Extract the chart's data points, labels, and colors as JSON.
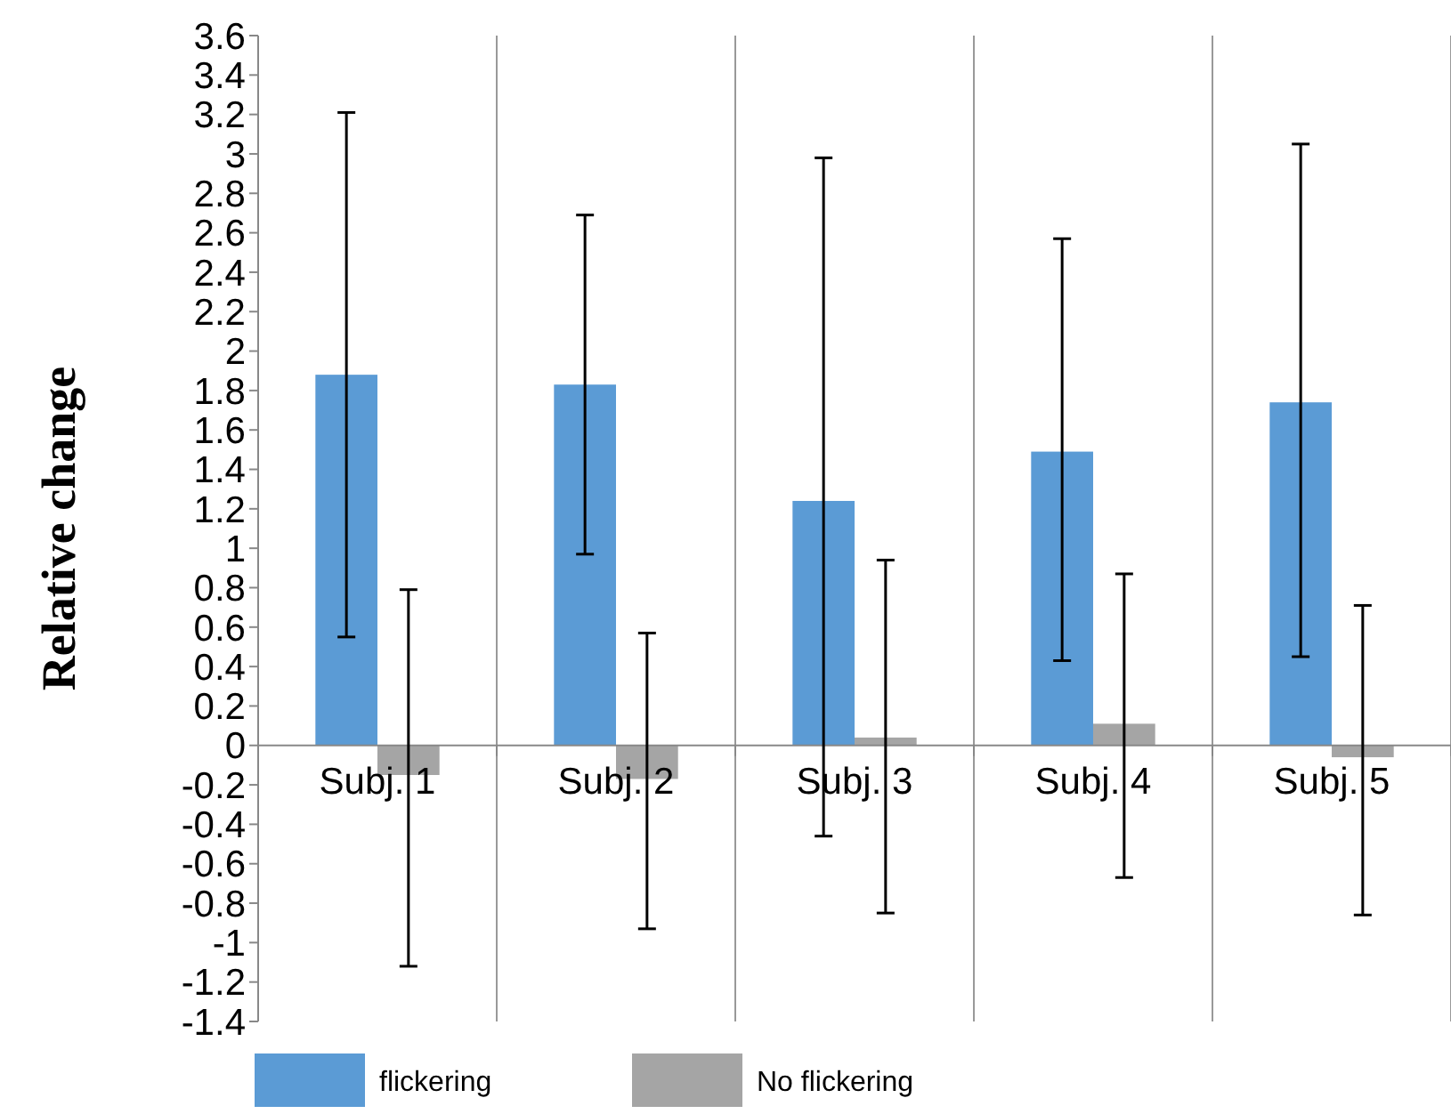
{
  "chart_data": {
    "type": "bar",
    "ylabel": "Relative change",
    "categories": [
      "Subj. 1",
      "Subj. 2",
      "Subj. 3",
      "Subj. 4",
      "Subj. 5"
    ],
    "series": [
      {
        "name": "flickering",
        "color": "#5b9bd5",
        "values": [
          1.88,
          1.83,
          1.24,
          1.49,
          1.74
        ],
        "errors": [
          [
            0.55,
            3.21
          ],
          [
            0.97,
            2.69
          ],
          [
            -0.46,
            2.98
          ],
          [
            0.43,
            2.57
          ],
          [
            0.45,
            3.05
          ]
        ]
      },
      {
        "name": "No flickering",
        "color": "#a5a5a5",
        "values": [
          -0.15,
          -0.17,
          0.04,
          0.11,
          -0.06
        ],
        "errors": [
          [
            -1.12,
            0.79
          ],
          [
            -0.93,
            0.57
          ],
          [
            -0.85,
            0.94
          ],
          [
            -0.67,
            0.87
          ],
          [
            -0.86,
            0.71
          ]
        ]
      }
    ],
    "ylim": [
      -1.4,
      3.6
    ],
    "yticks": [
      -1.4,
      -1.2,
      -1,
      -0.8,
      -0.6,
      -0.4,
      -0.2,
      0,
      0.2,
      0.4,
      0.6,
      0.8,
      1,
      1.2,
      1.4,
      1.6,
      1.8,
      2,
      2.2,
      2.4,
      2.6,
      2.8,
      3,
      3.2,
      3.4,
      3.6
    ],
    "grid": "x",
    "legend": "bottom"
  }
}
